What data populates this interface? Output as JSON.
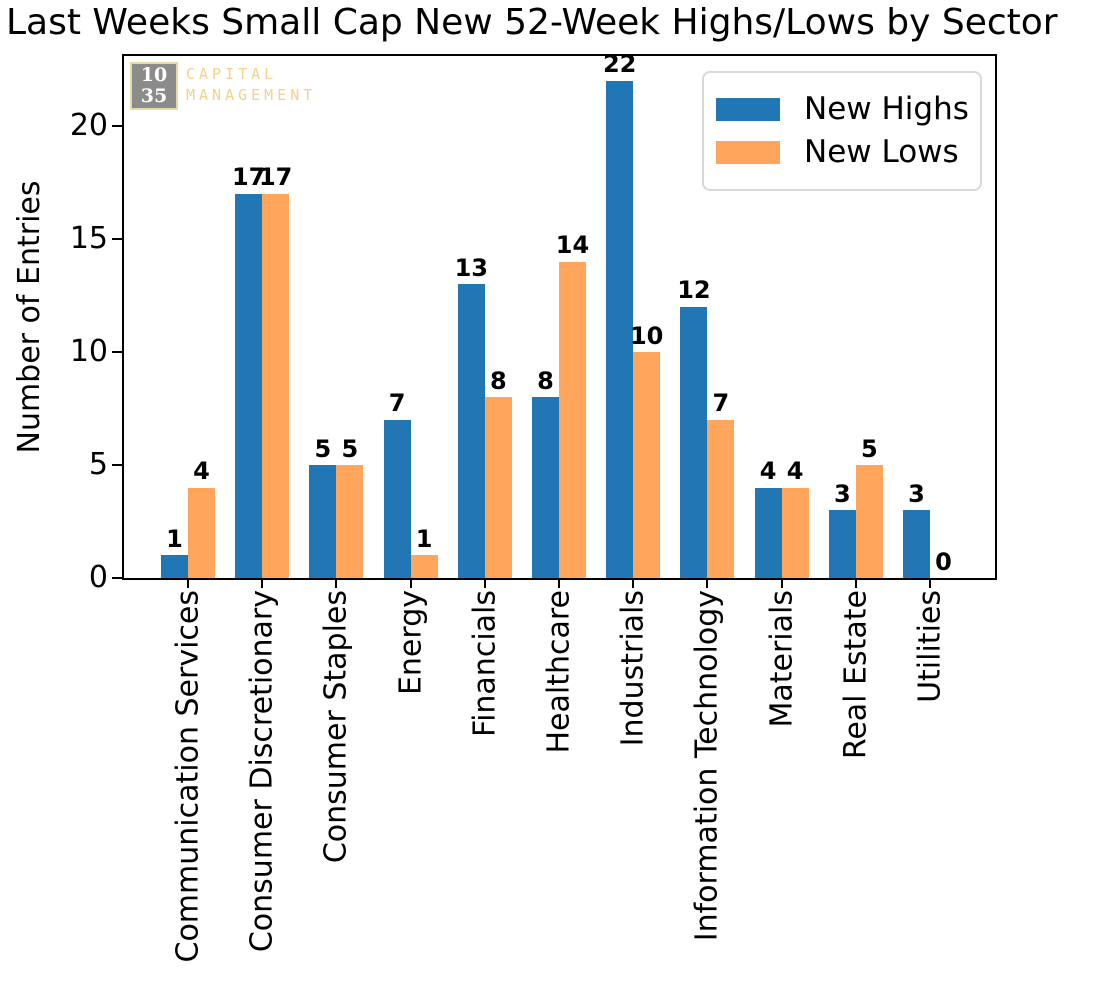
{
  "chart_data": {
    "type": "bar",
    "title": "Last Weeks Small Cap New 52-Week Highs/Lows by Sector",
    "xlabel": "",
    "ylabel": "Number of Entries",
    "categories": [
      "Communication Services",
      "Consumer Discretionary",
      "Consumer Staples",
      "Energy",
      "Financials",
      "Healthcare",
      "Industrials",
      "Information Technology",
      "Materials",
      "Real Estate",
      "Utilities"
    ],
    "series": [
      {
        "name": "New Highs",
        "color": "#2077b4",
        "values": [
          1,
          17,
          5,
          7,
          13,
          8,
          22,
          12,
          4,
          3,
          3
        ]
      },
      {
        "name": "New Lows",
        "color": "#ffa55c",
        "values": [
          4,
          17,
          5,
          1,
          8,
          14,
          10,
          7,
          4,
          5,
          0
        ]
      }
    ],
    "yticks": [
      0,
      5,
      10,
      15,
      20
    ],
    "ylim": [
      0,
      23.1
    ],
    "grid": false,
    "legend_position": "upper right",
    "bar_value_labels": true,
    "x_tick_rotation": 90
  },
  "logo": {
    "top_number": "10",
    "bottom_number": "35",
    "line1": "CAPITAL",
    "line2": "MANAGEMENT",
    "box_color": "#8b8b8b",
    "border_color": "#e9d9a5",
    "number_color": "#ffffff",
    "text_color": "#f0d38e"
  }
}
